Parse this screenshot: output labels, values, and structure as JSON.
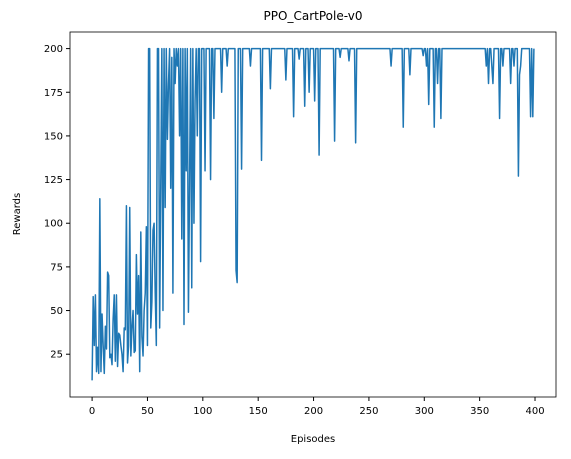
{
  "chart_data": {
    "type": "line",
    "title": "PPO_CartPole-v0",
    "x_label": "Episodes",
    "y_label": "Rewards",
    "color": "#1f77b4",
    "x": [
      0,
      1,
      2,
      3,
      4,
      5,
      6,
      7,
      8,
      9,
      10,
      11,
      12,
      13,
      14,
      15,
      16,
      17,
      18,
      19,
      20,
      21,
      22,
      23,
      24,
      25,
      26,
      27,
      28,
      29,
      30,
      31,
      32,
      33,
      34,
      35,
      36,
      37,
      38,
      39,
      40,
      41,
      42,
      43,
      44,
      45,
      46,
      47,
      48,
      49,
      50,
      51,
      52,
      53,
      54,
      55,
      56,
      57,
      58,
      59,
      60,
      61,
      62,
      63,
      64,
      65,
      66,
      67,
      68,
      69,
      70,
      71,
      72,
      73,
      74,
      75,
      76,
      77,
      78,
      79,
      80,
      81,
      82,
      83,
      84,
      85,
      86,
      87,
      88,
      89,
      90,
      91,
      92,
      93,
      94,
      95,
      96,
      97,
      98,
      99,
      100,
      101,
      102,
      103,
      104,
      105,
      106,
      107,
      108,
      109,
      110,
      111,
      112,
      113,
      114,
      115,
      116,
      117,
      118,
      119,
      120,
      121,
      122,
      123,
      124,
      125,
      126,
      127,
      128,
      129,
      130,
      131,
      132,
      133,
      134,
      135,
      136,
      137,
      138,
      139,
      140,
      141,
      142,
      143,
      144,
      145,
      146,
      147,
      148,
      149,
      150,
      151,
      152,
      153,
      154,
      155,
      156,
      157,
      158,
      159,
      160,
      161,
      162,
      163,
      164,
      165,
      166,
      167,
      168,
      169,
      170,
      171,
      172,
      173,
      174,
      175,
      176,
      177,
      178,
      179,
      180,
      181,
      182,
      183,
      184,
      185,
      186,
      187,
      188,
      189,
      190,
      191,
      192,
      193,
      194,
      195,
      196,
      197,
      198,
      199,
      200,
      201,
      202,
      203,
      204,
      205,
      206,
      207,
      208,
      209,
      210,
      211,
      212,
      213,
      214,
      215,
      216,
      217,
      218,
      219,
      220,
      221,
      222,
      223,
      224,
      225,
      226,
      227,
      228,
      229,
      230,
      231,
      232,
      233,
      234,
      235,
      236,
      237,
      238,
      239,
      240,
      241,
      242,
      243,
      244,
      245,
      246,
      247,
      248,
      249,
      250,
      251,
      252,
      253,
      254,
      255,
      256,
      257,
      258,
      259,
      260,
      261,
      262,
      263,
      264,
      265,
      266,
      267,
      268,
      269,
      270,
      271,
      272,
      273,
      274,
      275,
      276,
      277,
      278,
      279,
      280,
      281,
      282,
      283,
      284,
      285,
      286,
      287,
      288,
      289,
      290,
      291,
      292,
      293,
      294,
      295,
      296,
      297,
      298,
      299,
      300,
      301,
      302,
      303,
      304,
      305,
      306,
      307,
      308,
      309,
      310,
      311,
      312,
      313,
      314,
      315,
      316,
      317,
      318,
      319,
      320,
      321,
      322,
      323,
      324,
      325,
      326,
      327,
      328,
      329,
      330,
      331,
      332,
      333,
      334,
      335,
      336,
      337,
      338,
      339,
      340,
      341,
      342,
      343,
      344,
      345,
      346,
      347,
      348,
      349,
      350,
      351,
      352,
      353,
      354,
      355,
      356,
      357,
      358,
      359,
      360,
      361,
      362,
      363,
      364,
      365,
      366,
      367,
      368,
      369,
      370,
      371,
      372,
      373,
      374,
      375,
      376,
      377,
      378,
      379,
      380,
      381,
      382,
      383,
      384,
      385,
      386,
      387,
      388,
      389,
      390,
      391,
      392,
      393,
      394,
      395,
      396,
      397,
      398,
      399
    ],
    "values": [
      10,
      58,
      30,
      59,
      15,
      29,
      14,
      114,
      15,
      48,
      30,
      14,
      41,
      28,
      72,
      70,
      23,
      25,
      19,
      45,
      59,
      21,
      59,
      18,
      37,
      36,
      30,
      25,
      15,
      40,
      39,
      110,
      20,
      30,
      109,
      24,
      40,
      50,
      26,
      27,
      82,
      48,
      70,
      15,
      95,
      35,
      24,
      50,
      60,
      98,
      30,
      200,
      200,
      40,
      55,
      96,
      100,
      60,
      30,
      200,
      200,
      40,
      120,
      200,
      50,
      200,
      109,
      200,
      148,
      180,
      200,
      120,
      195,
      60,
      200,
      180,
      200,
      190,
      200,
      150,
      200,
      91,
      200,
      42,
      200,
      130,
      200,
      49,
      120,
      200,
      63,
      200,
      100,
      170,
      200,
      150,
      200,
      200,
      78,
      200,
      200,
      200,
      130,
      200,
      200,
      200,
      200,
      125,
      200,
      200,
      160,
      200,
      200,
      200,
      200,
      200,
      200,
      175,
      200,
      200,
      200,
      200,
      190,
      200,
      200,
      200,
      200,
      200,
      200,
      200,
      73,
      66,
      200,
      200,
      200,
      131,
      200,
      200,
      200,
      200,
      200,
      200,
      200,
      190,
      200,
      200,
      200,
      200,
      200,
      200,
      200,
      200,
      200,
      136,
      200,
      200,
      200,
      200,
      200,
      200,
      200,
      177,
      200,
      200,
      200,
      200,
      200,
      200,
      200,
      200,
      200,
      200,
      200,
      200,
      200,
      182,
      200,
      200,
      200,
      200,
      200,
      200,
      161,
      200,
      200,
      200,
      200,
      194,
      200,
      200,
      200,
      200,
      167,
      200,
      200,
      200,
      175,
      200,
      200,
      200,
      200,
      170,
      200,
      200,
      200,
      139,
      200,
      200,
      200,
      200,
      200,
      200,
      200,
      200,
      200,
      200,
      200,
      200,
      200,
      147,
      200,
      200,
      200,
      200,
      195,
      200,
      200,
      200,
      200,
      200,
      200,
      200,
      193,
      200,
      200,
      200,
      200,
      200,
      146,
      200,
      200,
      200,
      200,
      200,
      200,
      200,
      200,
      200,
      200,
      200,
      200,
      200,
      200,
      200,
      200,
      200,
      200,
      200,
      200,
      200,
      200,
      200,
      200,
      200,
      200,
      200,
      200,
      200,
      200,
      200,
      190,
      200,
      200,
      200,
      200,
      200,
      200,
      200,
      200,
      200,
      200,
      155,
      200,
      200,
      200,
      200,
      200,
      185,
      200,
      200,
      200,
      200,
      200,
      200,
      200,
      200,
      200,
      200,
      200,
      196,
      200,
      200,
      190,
      200,
      168,
      200,
      200,
      200,
      200,
      155,
      200,
      200,
      180,
      200,
      200,
      160,
      200,
      200,
      200,
      200,
      200,
      200,
      200,
      200,
      200,
      200,
      200,
      200,
      200,
      200,
      200,
      200,
      200,
      200,
      200,
      200,
      200,
      200,
      200,
      200,
      200,
      200,
      200,
      200,
      200,
      200,
      200,
      200,
      200,
      200,
      200,
      200,
      200,
      200,
      200,
      200,
      190,
      200,
      180,
      200,
      200,
      190,
      180,
      200,
      200,
      200,
      200,
      200,
      160,
      200,
      200,
      190,
      200,
      200,
      200,
      200,
      200,
      200,
      180,
      200,
      200,
      190,
      200,
      200,
      200,
      127,
      185,
      190,
      200,
      200,
      200,
      200,
      200,
      200,
      200,
      200,
      161,
      200,
      161,
      200
    ],
    "xlim": [
      -19.95,
      418.95
    ],
    "xticks": [
      0,
      50,
      100,
      150,
      200,
      250,
      300,
      350,
      400
    ],
    "ylim": [
      0.5,
      209.5
    ],
    "yticks": [
      25,
      50,
      75,
      100,
      125,
      150,
      175,
      200
    ]
  }
}
